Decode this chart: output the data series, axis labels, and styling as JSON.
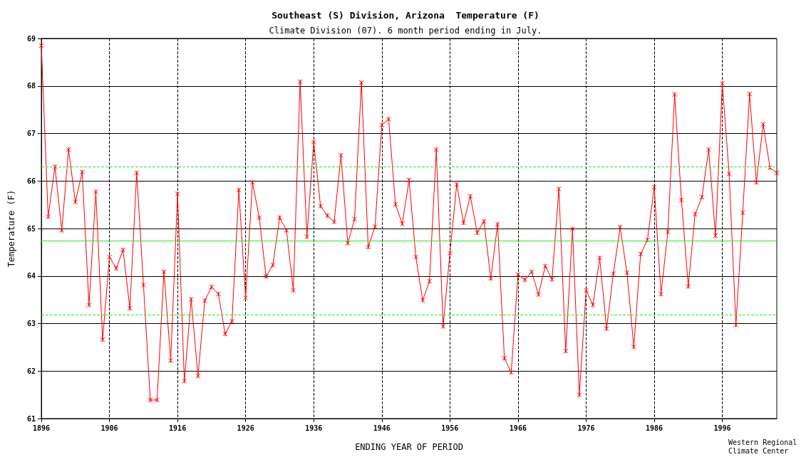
{
  "chart_data": {
    "type": "line",
    "title": "Southeast (S) Division, Arizona  Temperature (F)",
    "subtitle": "Climate Division (07). 6 month period ending in July.",
    "xlabel": "ENDING YEAR OF PERIOD",
    "ylabel": "Temperature (F)",
    "annotations": [
      "Western Regional Climate Center"
    ],
    "x": [
      1896,
      1897,
      1898,
      1899,
      1900,
      1901,
      1902,
      1903,
      1904,
      1905,
      1906,
      1907,
      1908,
      1909,
      1910,
      1911,
      1912,
      1913,
      1914,
      1915,
      1916,
      1917,
      1918,
      1919,
      1920,
      1921,
      1922,
      1923,
      1924,
      1925,
      1926,
      1927,
      1928,
      1929,
      1930,
      1931,
      1932,
      1933,
      1934,
      1935,
      1936,
      1937,
      1938,
      1939,
      1940,
      1941,
      1942,
      1943,
      1944,
      1945,
      1946,
      1947,
      1948,
      1949,
      1950,
      1951,
      1952,
      1953,
      1954,
      1955,
      1956,
      1957,
      1958,
      1959,
      1960,
      1961,
      1962,
      1963,
      1964,
      1965,
      1966,
      1967,
      1968,
      1969,
      1970,
      1971,
      1972,
      1973,
      1974,
      1975,
      1976,
      1977,
      1978,
      1979,
      1980,
      1981,
      1982,
      1983,
      1984,
      1985,
      1986,
      1987,
      1988,
      1989,
      1990,
      1991,
      1992,
      1993,
      1994,
      1995,
      1996,
      1997,
      1998,
      1999,
      2000,
      2001,
      2002,
      2003,
      2004
    ],
    "series": [
      {
        "color": "#ff0000",
        "values": [
          68.85,
          65.25,
          66.3,
          64.96,
          66.66,
          65.56,
          66.19,
          63.39,
          65.77,
          62.66,
          64.4,
          64.16,
          64.55,
          63.32,
          66.17,
          63.81,
          61.39,
          61.39,
          64.09,
          62.22,
          65.73,
          61.79,
          63.51,
          61.9,
          63.48,
          63.77,
          63.62,
          62.78,
          63.05,
          65.81,
          63.54,
          65.97,
          65.23,
          63.99,
          64.23,
          65.23,
          64.96,
          63.7,
          68.09,
          64.83,
          66.82,
          65.47,
          65.27,
          65.14,
          66.54,
          64.69,
          65.2,
          68.07,
          64.61,
          65.04,
          67.18,
          67.3,
          65.51,
          65.1,
          66.02,
          64.4,
          63.49,
          63.89,
          66.66,
          62.94,
          64.48,
          65.93,
          65.12,
          65.68,
          64.91,
          65.15,
          63.95,
          65.09,
          62.27,
          61.97,
          64.03,
          63.92,
          64.09,
          63.61,
          64.21,
          63.93,
          65.83,
          62.42,
          64.99,
          61.5,
          63.7,
          63.39,
          64.38,
          62.89,
          64.05,
          65.03,
          64.07,
          62.51,
          64.46,
          64.76,
          65.87,
          63.62,
          64.93,
          67.82,
          65.6,
          63.78,
          65.3,
          65.66,
          66.66,
          64.85,
          68.05,
          66.15,
          62.97,
          65.33,
          67.83,
          65.97,
          67.19,
          66.28,
          66.17
        ]
      }
    ],
    "xlim": [
      1896,
      2004
    ],
    "xticks": [
      1896,
      1906,
      1916,
      1926,
      1936,
      1946,
      1956,
      1966,
      1976,
      1986,
      1996
    ],
    "ylim": [
      61,
      69
    ],
    "yticks": [
      61,
      62,
      63,
      64,
      65,
      66,
      67,
      68,
      69
    ],
    "grid": true,
    "marker": "cross",
    "line_style": "solid",
    "ref_lines": [
      {
        "axis": "y",
        "value": 64.74,
        "label": null,
        "color": "#22ee22",
        "line_style": "solid"
      },
      {
        "axis": "y",
        "value": 66.3,
        "label": null,
        "color": "#22ee22",
        "line_style": "dashed"
      },
      {
        "axis": "y",
        "value": 63.18,
        "label": null,
        "color": "#22ee22",
        "line_style": "dashed"
      }
    ]
  }
}
